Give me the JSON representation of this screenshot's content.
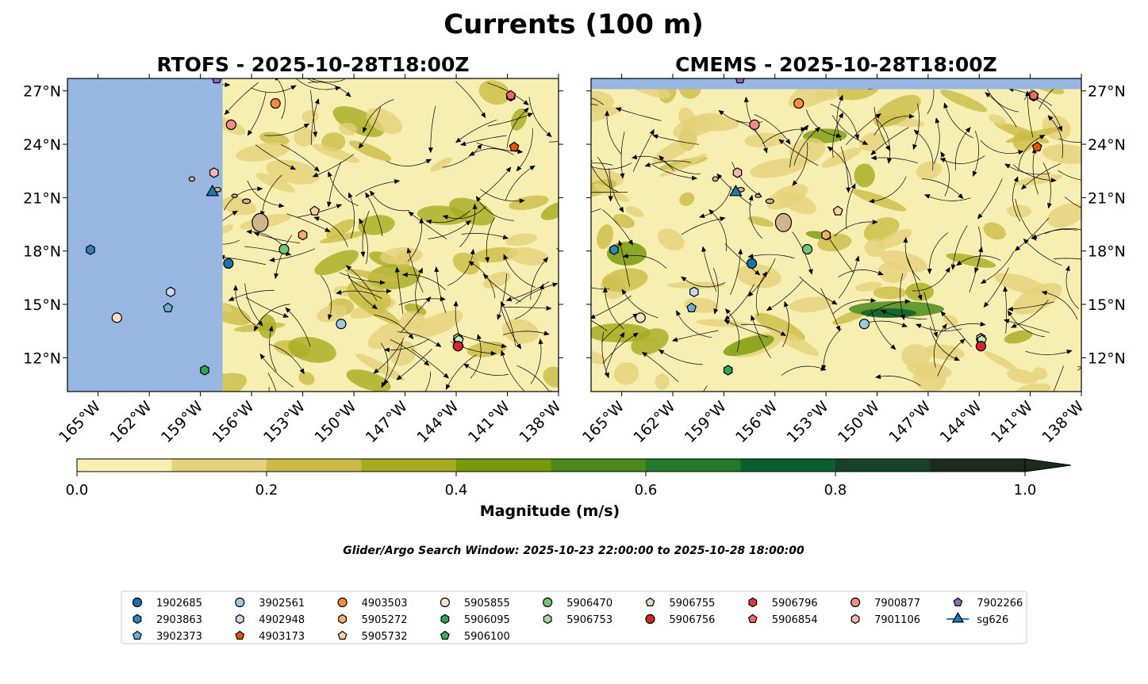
{
  "chart_data": {
    "type": "scatter",
    "title": "Currents (100 m)",
    "panels": [
      {
        "title": "RTOFS - 2025-10-28T18:00Z",
        "missing_west_of_lon": -157.7
      },
      {
        "title": "CMEMS - 2025-10-28T18:00Z",
        "missing_north_of_lat": 27.1
      }
    ],
    "xlim": [
      -166.8,
      -138
    ],
    "ylim": [
      10.1,
      27.7
    ],
    "x_ticks": [
      -165,
      -162,
      -159,
      -156,
      -153,
      -150,
      -147,
      -144,
      -141,
      -138
    ],
    "x_tick_labels": [
      "165°W",
      "162°W",
      "159°W",
      "156°W",
      "153°W",
      "150°W",
      "147°W",
      "144°W",
      "141°W",
      "138°W"
    ],
    "y_ticks": [
      12,
      15,
      18,
      21,
      24,
      27
    ],
    "y_tick_labels": [
      "12°N",
      "15°N",
      "18°N",
      "21°N",
      "24°N",
      "27°N"
    ],
    "colorbar": {
      "label": "Magnitude (m/s)",
      "levels": [
        0,
        0.1,
        0.2,
        0.3,
        0.4,
        0.5,
        0.6,
        0.7,
        0.8,
        0.9,
        1.0
      ],
      "colors": [
        "#f7eeb2",
        "#e3d27a",
        "#c9bb45",
        "#a6ab1f",
        "#789a0a",
        "#4b8a1a",
        "#22792a",
        "#0b5e30",
        "#174229",
        "#1c2b1d"
      ],
      "tick_values": [
        0,
        0.2,
        0.4,
        0.6,
        0.8,
        1.0
      ],
      "tick_labels": [
        "0.0",
        "0.2",
        "0.4",
        "0.6",
        "0.8",
        "1.0"
      ],
      "extend": "max"
    },
    "search_window": "Glider/Argo Search Window: 2025-10-23 22:00:00 to 2025-10-28 18:00:00",
    "series": [
      {
        "name": "1902685",
        "marker": "circle",
        "color": "#1f6fb0",
        "lon": -157.36,
        "lat": 17.3
      },
      {
        "name": "2903863",
        "marker": "hexagon",
        "color": "#3182bd",
        "lon": -165.45,
        "lat": 18.07
      },
      {
        "name": "3902373",
        "marker": "pentagon",
        "color": "#6baed6",
        "lon": -160.9,
        "lat": 14.8
      },
      {
        "name": "3902561",
        "marker": "circle",
        "color": "#9ecae1",
        "lon": -150.75,
        "lat": 13.9
      },
      {
        "name": "4902948",
        "marker": "hexagon",
        "color": "#c6dbef",
        "lon": -160.75,
        "lat": 15.7
      },
      {
        "name": "4903173",
        "marker": "pentagon",
        "color": "#e6550d",
        "lon": -140.6,
        "lat": 23.85
      },
      {
        "name": "4903503",
        "marker": "circle",
        "color": "#fd8d3c",
        "lon": -154.6,
        "lat": 26.3
      },
      {
        "name": "5905272",
        "marker": "hexagon",
        "color": "#fdae6b",
        "lon": -153.0,
        "lat": 18.9
      },
      {
        "name": "5905732",
        "marker": "pentagon",
        "color": "#fdd0a2",
        "lon": -152.3,
        "lat": 20.25
      },
      {
        "name": "5905855",
        "marker": "circle",
        "color": "#fde0c5",
        "lon": -163.9,
        "lat": 14.25
      },
      {
        "name": "5906095",
        "marker": "hexagon",
        "color": "#31a354",
        "lon": -158.75,
        "lat": 11.3
      },
      {
        "name": "5906100",
        "marker": "pentagon",
        "color": "#41ab5d",
        "lon": -143.9,
        "lat": 12.96
      },
      {
        "name": "5906470",
        "marker": "circle",
        "color": "#74c476",
        "lon": -154.1,
        "lat": 18.1
      },
      {
        "name": "5906753",
        "marker": "hexagon",
        "color": "#a1d99b",
        "lon": -143.9,
        "lat": 13.1
      },
      {
        "name": "5906755",
        "marker": "pentagon",
        "color": "#c7e9c0",
        "lon": -143.85,
        "lat": 13.0
      },
      {
        "name": "5906756",
        "marker": "circle",
        "color": "#d62728",
        "lon": -143.9,
        "lat": 12.65
      },
      {
        "name": "5906796",
        "marker": "hexagon",
        "color": "#de3c3c",
        "lon": -140.8,
        "lat": 26.7
      },
      {
        "name": "5906854",
        "marker": "pentagon",
        "color": "#f0686a",
        "lon": -140.8,
        "lat": 26.75
      },
      {
        "name": "7900877",
        "marker": "circle",
        "color": "#f08c8c",
        "lon": -157.2,
        "lat": 25.1
      },
      {
        "name": "7901106",
        "marker": "hexagon",
        "color": "#fbb4b4",
        "lon": -158.2,
        "lat": 22.4
      },
      {
        "name": "7902266",
        "marker": "pentagon",
        "color": "#9467bd",
        "lon": -158.05,
        "lat": 27.67
      },
      {
        "name": "sg626",
        "marker": "triangle",
        "color": "#1f77b4",
        "lon": -158.3,
        "lat": 21.3
      }
    ]
  }
}
